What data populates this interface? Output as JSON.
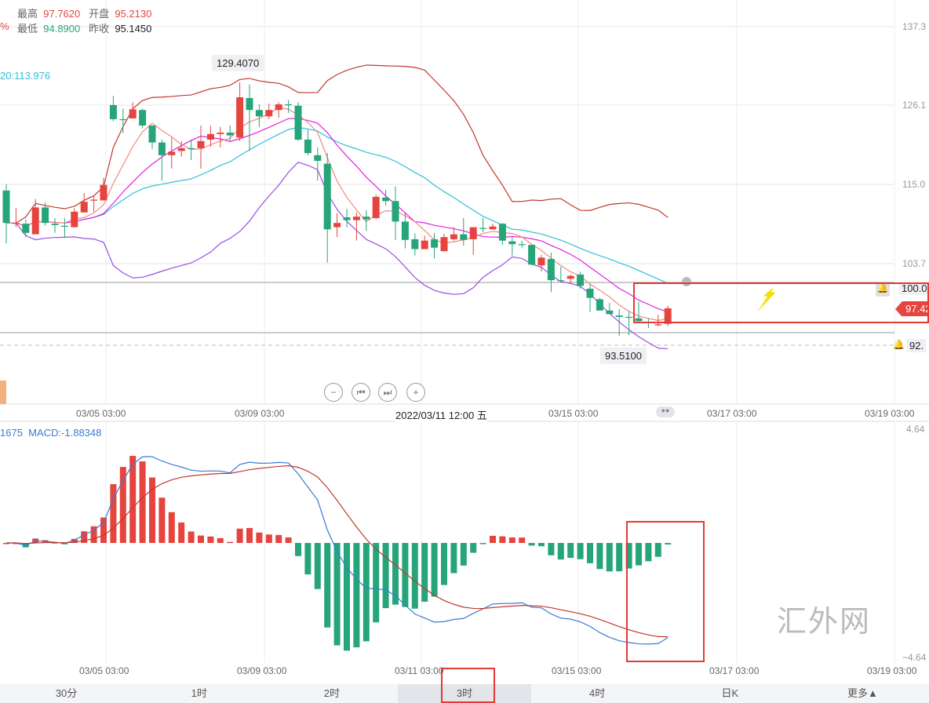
{
  "header": {
    "partial_pct": "%",
    "high_label": "最高",
    "high": "97.7620",
    "open_label": "开盘",
    "open": "95.2130",
    "low_label": "最低",
    "low": "94.8900",
    "prev_close_label": "昨收",
    "prev_close": "95.1450",
    "ma_label": "20:113.976"
  },
  "price_axis": [
    "137.3",
    "126.1",
    "115.0",
    "103.7"
  ],
  "alerts": {
    "level1": "100.0",
    "current": "97.42",
    "level2": "92."
  },
  "tooltips": {
    "max": "129.4070",
    "min": "93.5100"
  },
  "x_axis": [
    "03/05 03:00",
    "03/09 03:00",
    "03/15 03:00",
    "03/17 03:00",
    "03/19 03:00"
  ],
  "crosshair_label": "2022/03/11 12:00 五",
  "macd": {
    "partial_label": "1675",
    "macd_label": "MACD:-1.88348",
    "ymax": "4.64",
    "ymin": "−4.64",
    "x_axis": [
      "03/05 03:00",
      "03/09 03:00",
      "03/11 03:00",
      "03/15 03:00",
      "03/17 03:00",
      "03/19 03:00"
    ]
  },
  "controls": {
    "zoom_out": "−",
    "prev": "⏮",
    "next": "⏭",
    "zoom_in": "+"
  },
  "tabs": [
    "30分",
    "1时",
    "2时",
    "3时",
    "4时",
    "日K",
    "更多▲"
  ],
  "active_tab": "3时",
  "watermark": "汇外网",
  "colors": {
    "up": "#e5453e",
    "down": "#27a57a",
    "ma5": "#f08a80",
    "ma10": "#e020e0",
    "ma20": "#30c0d8",
    "boll_upper": "#c0392b",
    "boll_lower": "#9b4de0",
    "dif": "#3a7bd5",
    "dea": "#c0392b",
    "annotation": "#e53935",
    "arrow": "#f5e000"
  },
  "chart_data": {
    "type": "candlestick",
    "ylim": [
      88,
      140
    ],
    "candles_ohlc": [
      [
        114.1,
        115.0,
        106.6,
        109.5
      ],
      [
        109.5,
        111.6,
        108.9,
        109.5
      ],
      [
        109.4,
        110.0,
        107.5,
        108.1
      ],
      [
        107.9,
        112.9,
        107.9,
        111.7
      ],
      [
        111.7,
        112.4,
        109.1,
        109.5
      ],
      [
        109.4,
        110.2,
        108.1,
        109.2
      ],
      [
        109.1,
        110.2,
        107.4,
        109.0
      ],
      [
        108.9,
        111.6,
        108.9,
        111.1
      ],
      [
        111.0,
        113.7,
        111.0,
        112.5
      ],
      [
        112.7,
        113.3,
        111.1,
        112.8
      ],
      [
        112.7,
        115.9,
        112.7,
        114.9
      ],
      [
        126.2,
        127.5,
        123.9,
        124.2
      ],
      [
        124.2,
        125.7,
        122.2,
        124.1
      ],
      [
        124.3,
        126.6,
        124.3,
        125.6
      ],
      [
        125.5,
        125.7,
        122.9,
        123.3
      ],
      [
        123.3,
        123.3,
        120.0,
        120.9
      ],
      [
        120.9,
        121.3,
        115.5,
        119.1
      ],
      [
        119.1,
        121.6,
        117.2,
        119.6
      ],
      [
        119.7,
        121.1,
        118.9,
        120.1
      ],
      [
        120.1,
        121.3,
        118.4,
        120.0
      ],
      [
        120.1,
        123.3,
        117.2,
        121.1
      ],
      [
        121.3,
        123.3,
        120.3,
        122.1
      ],
      [
        122.1,
        123.1,
        120.2,
        122.3
      ],
      [
        122.3,
        123.3,
        121.1,
        121.9
      ],
      [
        121.6,
        129.407,
        121.1,
        127.3
      ],
      [
        127.2,
        129.1,
        119.7,
        125.5
      ],
      [
        125.5,
        126.3,
        123.1,
        124.6
      ],
      [
        124.6,
        126.4,
        124.2,
        125.5
      ],
      [
        125.5,
        126.6,
        124.4,
        126.3
      ],
      [
        126.3,
        126.9,
        125.1,
        126.2
      ],
      [
        126.1,
        126.6,
        121.1,
        121.3
      ],
      [
        121.3,
        122.7,
        119.1,
        119.4
      ],
      [
        119.1,
        120.2,
        115.5,
        118.3
      ],
      [
        117.9,
        119.4,
        103.9,
        108.6
      ],
      [
        108.9,
        110.9,
        107.5,
        109.5
      ],
      [
        110.3,
        111.5,
        108.9,
        109.9
      ],
      [
        109.9,
        111.0,
        107.0,
        110.4
      ],
      [
        110.4,
        111.3,
        108.4,
        110.0
      ],
      [
        110.2,
        113.5,
        110.0,
        113.2
      ],
      [
        113.1,
        114.2,
        112.0,
        112.6
      ],
      [
        112.6,
        114.7,
        107.1,
        109.7
      ],
      [
        109.7,
        110.9,
        105.9,
        107.1
      ],
      [
        107.2,
        108.0,
        104.9,
        105.8
      ],
      [
        105.8,
        107.7,
        105.8,
        107.0
      ],
      [
        107.2,
        108.1,
        104.5,
        106.0
      ],
      [
        105.5,
        108.0,
        105.5,
        107.5
      ],
      [
        107.2,
        108.9,
        107.0,
        107.9
      ],
      [
        107.9,
        110.2,
        106.3,
        107.1
      ],
      [
        107.2,
        108.9,
        105.0,
        108.9
      ],
      [
        108.8,
        110.2,
        108.2,
        108.7
      ],
      [
        108.6,
        109.4,
        108.6,
        109.0
      ],
      [
        109.4,
        109.5,
        106.4,
        107.0
      ],
      [
        106.9,
        107.4,
        104.9,
        106.5
      ],
      [
        106.5,
        107.0,
        106.0,
        106.4
      ],
      [
        106.4,
        106.4,
        103.5,
        103.6
      ],
      [
        103.5,
        105.0,
        102.6,
        104.6
      ],
      [
        104.4,
        105.3,
        99.7,
        101.4
      ],
      [
        101.4,
        103.3,
        101.3,
        101.3
      ],
      [
        101.6,
        102.2,
        100.9,
        102.0
      ],
      [
        102.2,
        102.6,
        100.2,
        100.6
      ],
      [
        100.2,
        100.9,
        96.9,
        98.9
      ],
      [
        98.7,
        98.9,
        97.1,
        97.1
      ],
      [
        97.1,
        98.2,
        96.6,
        96.6
      ],
      [
        96.4,
        97.3,
        93.51,
        96.2
      ],
      [
        96.2,
        97.0,
        93.6,
        96.1
      ],
      [
        96.0,
        98.3,
        95.5,
        95.6
      ],
      [
        95.5,
        96.0,
        94.6,
        95.4
      ],
      [
        95.0,
        96.5,
        94.9,
        95.145
      ],
      [
        95.213,
        97.762,
        94.89,
        97.42
      ]
    ],
    "macd_ylim": [
      -4.64,
      4.64
    ]
  }
}
